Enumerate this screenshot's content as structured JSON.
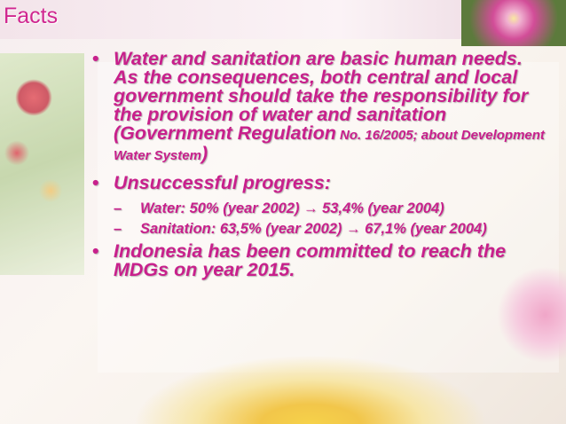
{
  "slide": {
    "title": "Facts",
    "bullets": [
      {
        "parts": [
          "Water and sanitation are basic human needs. As the consequences, both central and local government should take the responsibility for the provision of water and sanitation (Government Regulation",
          " No. 16/2005; about Development Water System",
          ")"
        ]
      },
      {
        "parts": [
          "Unsuccessful progress:"
        ],
        "sub": [
          "Water: 50% (year 2002) → 53,4% (year 2004)",
          "Sanitation: 63,5% (year 2002) → 67,1% (year 2004)"
        ]
      },
      {
        "parts": [
          "Indonesia has been committed to reach the MDGs on year 2015."
        ]
      }
    ]
  }
}
